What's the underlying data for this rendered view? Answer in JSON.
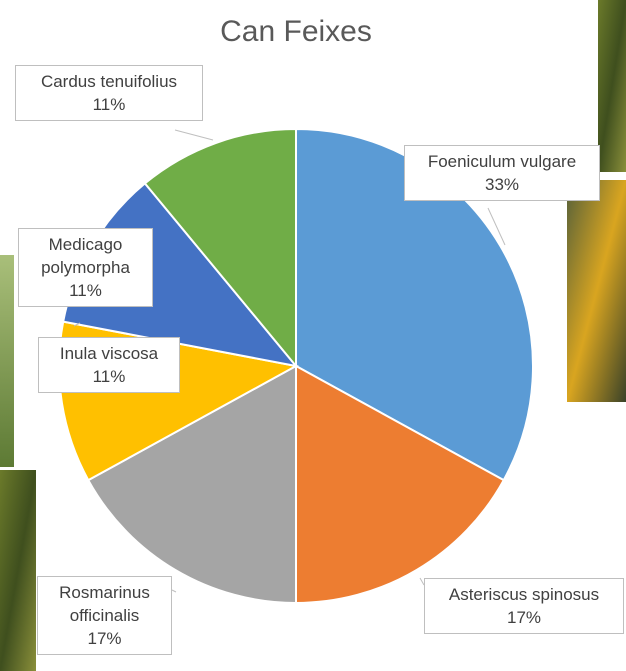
{
  "chart_data": {
    "type": "pie",
    "title": "Can Feixes",
    "categories": [
      "Foeniculum vulgare",
      "Asteriscus spinosus",
      "Rosmarinus officinalis",
      "Inula viscosa",
      "Medicago polymorpha",
      "Cardus tenuifolius"
    ],
    "values": [
      33,
      17,
      17,
      11,
      11,
      11
    ],
    "value_labels": [
      "33%",
      "17%",
      "17%",
      "11%",
      "11%",
      "11%"
    ],
    "colors": [
      "#5b9bd5",
      "#ed7d31",
      "#a5a5a5",
      "#ffc000",
      "#4472c4",
      "#70ad47"
    ]
  }
}
